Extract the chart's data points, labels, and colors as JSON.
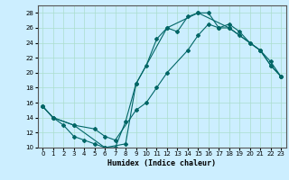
{
  "xlabel": "Humidex (Indice chaleur)",
  "background_color": "#cceeff",
  "grid_color": "#aaddcc",
  "line_color": "#006666",
  "xlim": [
    -0.5,
    23.5
  ],
  "ylim": [
    10,
    29
  ],
  "xticks": [
    0,
    1,
    2,
    3,
    4,
    5,
    6,
    7,
    8,
    9,
    10,
    11,
    12,
    13,
    14,
    15,
    16,
    17,
    18,
    19,
    20,
    21,
    22,
    23
  ],
  "yticks": [
    10,
    12,
    14,
    16,
    18,
    20,
    22,
    24,
    26,
    28
  ],
  "curve1_x": [
    0,
    1,
    2,
    3,
    4,
    5,
    6,
    7,
    8,
    9,
    10,
    11,
    12,
    13,
    14,
    15,
    16,
    17,
    18,
    19,
    20,
    21,
    22,
    23
  ],
  "curve1_y": [
    15.5,
    14.0,
    13.0,
    11.5,
    11.0,
    10.5,
    10.0,
    10.0,
    13.5,
    18.5,
    21.0,
    24.5,
    26.0,
    25.5,
    27.5,
    28.0,
    28.0,
    26.0,
    26.0,
    25.0,
    24.0,
    23.0,
    21.0,
    19.5
  ],
  "curve2_x": [
    0,
    1,
    3,
    5,
    6,
    7,
    9,
    10,
    11,
    12,
    14,
    15,
    16,
    17,
    18,
    19,
    20,
    21,
    22,
    23
  ],
  "curve2_y": [
    15.5,
    14.0,
    13.0,
    12.5,
    11.5,
    11.0,
    15.0,
    16.0,
    18.0,
    20.0,
    23.0,
    25.0,
    26.5,
    26.0,
    26.5,
    25.5,
    24.0,
    23.0,
    21.5,
    19.5
  ],
  "curve3_x": [
    0,
    1,
    3,
    6,
    8,
    9,
    12,
    15,
    18,
    21,
    22,
    23
  ],
  "curve3_y": [
    15.5,
    14.0,
    13.0,
    10.0,
    10.5,
    18.5,
    26.0,
    28.0,
    26.0,
    23.0,
    21.0,
    19.5
  ]
}
